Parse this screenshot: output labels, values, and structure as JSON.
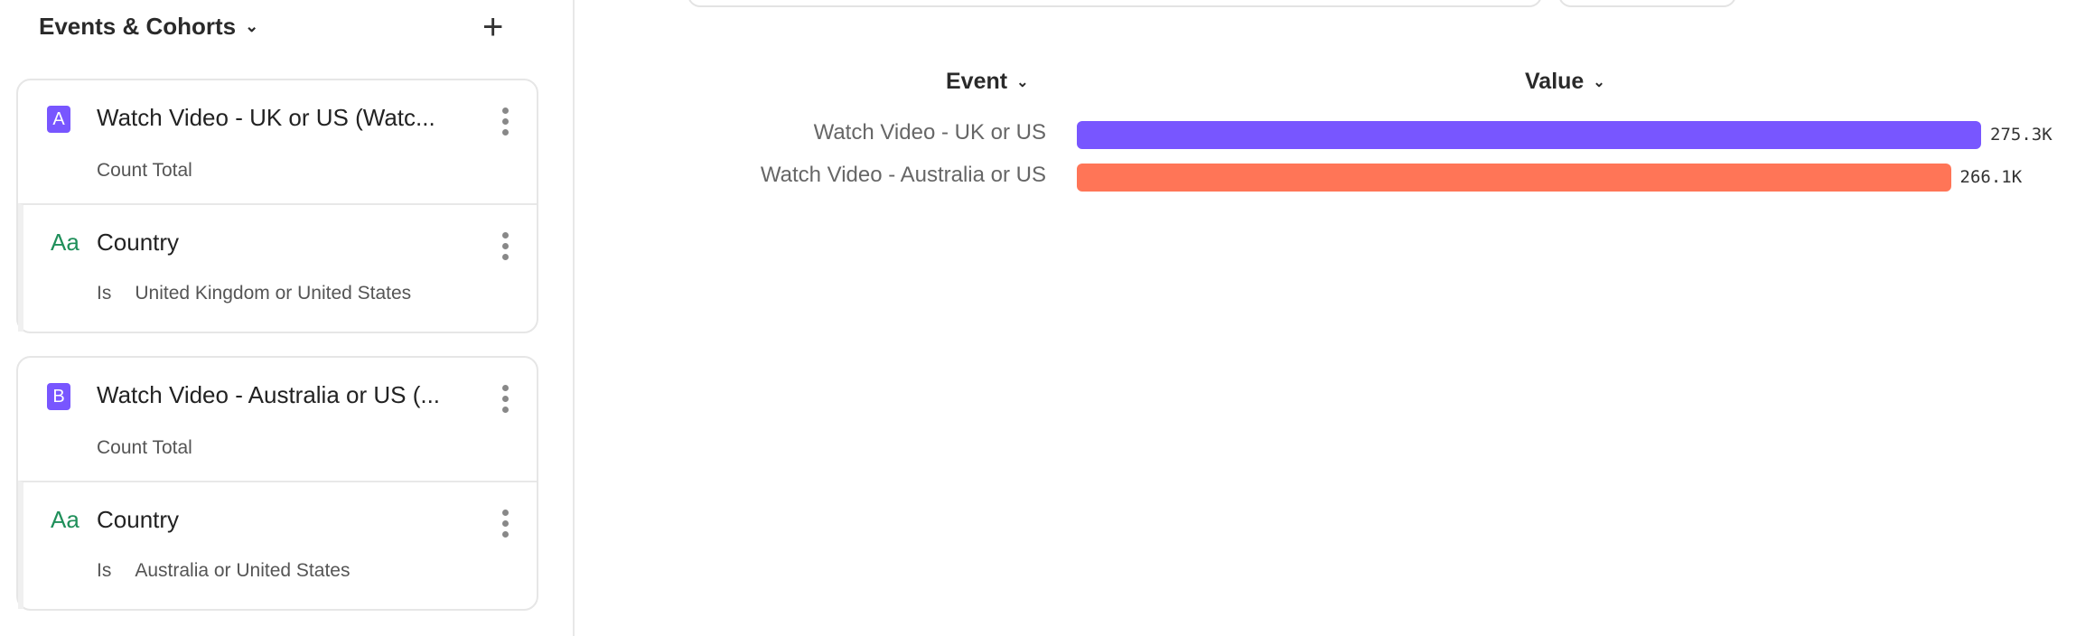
{
  "sidebar": {
    "header": "Events & Cohorts",
    "cards": [
      {
        "badge": "A",
        "title": "Watch Video - UK or US (Watc...",
        "subtitle": "Count Total",
        "filter": {
          "title": "Country",
          "operator": "Is",
          "value": "United Kingdom or United States"
        }
      },
      {
        "badge": "B",
        "title": "Watch Video - Australia or US (...",
        "subtitle": "Count Total",
        "filter": {
          "title": "Country",
          "operator": "Is",
          "value": "Australia or United States"
        }
      }
    ],
    "filter_icon_text": "Aa"
  },
  "table": {
    "event_header": "Event",
    "value_header": "Value"
  },
  "chart_data": {
    "type": "bar",
    "orientation": "horizontal",
    "categories": [
      "Watch Video - UK or US",
      "Watch Video - Australia or US"
    ],
    "values": [
      275300,
      266100
    ],
    "value_labels": [
      "275.3K",
      "266.1K"
    ],
    "colors": [
      "#7856ff",
      "#ff7557"
    ]
  }
}
